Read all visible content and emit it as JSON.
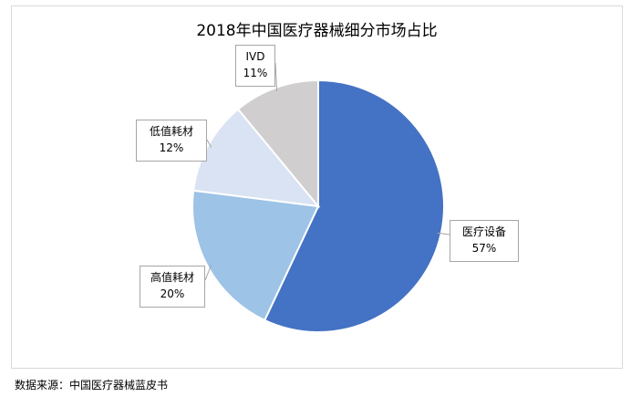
{
  "chart_data": {
    "type": "pie",
    "title": "2018年中国医疗器械细分市场占比",
    "slices": [
      {
        "label": "医疗设备",
        "value": 57,
        "value_label": "57%",
        "color": "#4472c4"
      },
      {
        "label": "高值耗材",
        "value": 20,
        "value_label": "20%",
        "color": "#9dc3e6"
      },
      {
        "label": "低值耗材",
        "value": 12,
        "value_label": "12%",
        "color": "#dae3f3"
      },
      {
        "label": "IVD",
        "value": 11,
        "value_label": "11%",
        "color": "#d0cece"
      }
    ],
    "start_angle_deg": 0,
    "direction": "clockwise",
    "label_style": "callout"
  },
  "footer": {
    "source": "数据来源：中国医疗器械蓝皮书"
  }
}
